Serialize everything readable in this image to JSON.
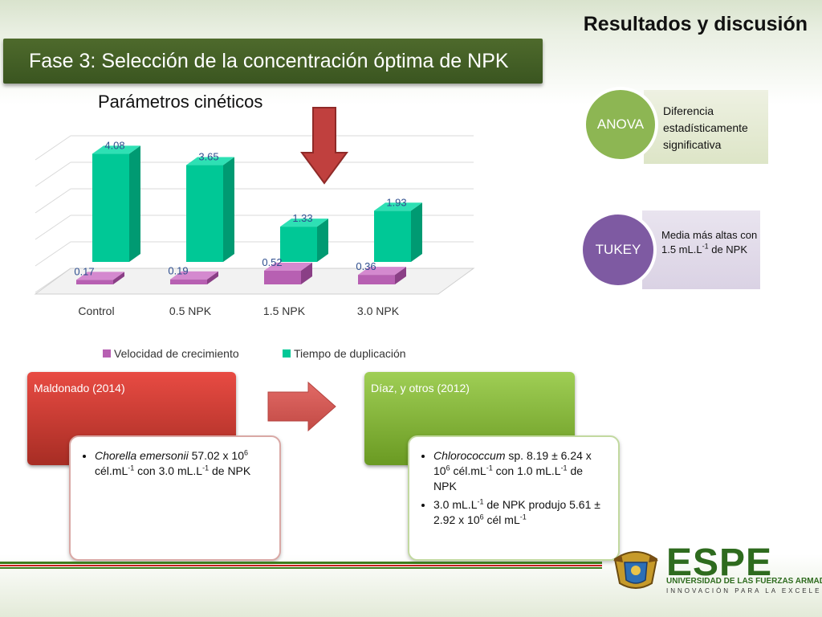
{
  "header": {
    "slide_title": "Resultados y discusión",
    "banner_title": "Fase 3: Selección de la concentración óptima de NPK"
  },
  "chart_title": "Parámetros cinéticos",
  "colors": {
    "accent_green": "#00c896",
    "accent_purple": "#b760b2",
    "banner_green": "#4e6a2c",
    "arrow_red": "#c0403e"
  },
  "chart_data": {
    "type": "bar",
    "title": "Parámetros cinéticos",
    "categories": [
      "Control",
      "0.5 NPK",
      "1.5 NPK",
      "3.0 NPK"
    ],
    "series": [
      {
        "name": "Velocidad de crecimiento",
        "values": [
          0.17,
          0.19,
          0.52,
          0.36
        ]
      },
      {
        "name": "Tiempo de duplicación",
        "values": [
          4.08,
          3.65,
          1.33,
          1.93
        ]
      }
    ],
    "labels": {
      "Velocidad de crecimiento": [
        "0.17",
        "0.19",
        "0.52",
        "0.36"
      ],
      "Tiempo de duplicación": [
        "4.08",
        "3.65",
        "1.33",
        "1.93"
      ]
    },
    "ylim": [
      0,
      5
    ],
    "grid": true,
    "legend_position": "bottom",
    "style": "3d-clustered"
  },
  "stats": {
    "anova": {
      "label": "ANOVA",
      "text": "Diferencia estadísticamente significativa"
    },
    "tukey": {
      "label": "TUKEY",
      "text_main": "Media  más altas con 1.5 mL.L",
      "sup": "-1",
      "text_tail": "  de NPK"
    }
  },
  "references": {
    "left": {
      "label": "Maldonado (2014)",
      "species": "Chorella emersonii",
      "line1": " 57.02 x 10",
      "sup1": "6",
      "line2": " cél.mL",
      "sup2": "-1",
      "line3": "  con 3.0 mL.L",
      "sup3": "-1",
      "line4": " de NPK"
    },
    "right": {
      "label": "Díaz, y otros (2012)",
      "b1_species": "Chlorococcum",
      "b1_a": " sp.  8.19 ± 6.24 x 10",
      "b1_sup1": "6",
      "b1_b": " cél.mL",
      "b1_sup2": "-1",
      "b1_c": " con 1.0 mL.L",
      "b1_sup3": "-1",
      "b1_d": " de NPK",
      "b2_a": "3.0 mL.L",
      "b2_sup1": "-1",
      "b2_b": " de NPK produjo 5.61 ± 2.92 x 10",
      "b2_sup2": "6",
      "b2_c": " cél mL",
      "b2_sup3": "-1"
    }
  },
  "logo": {
    "brand": "ESPE",
    "university": "UNIVERSIDAD DE LAS FUERZAS ARMADAS",
    "tagline": "INNOVACIÓN PARA LA EXCELENCIA"
  }
}
